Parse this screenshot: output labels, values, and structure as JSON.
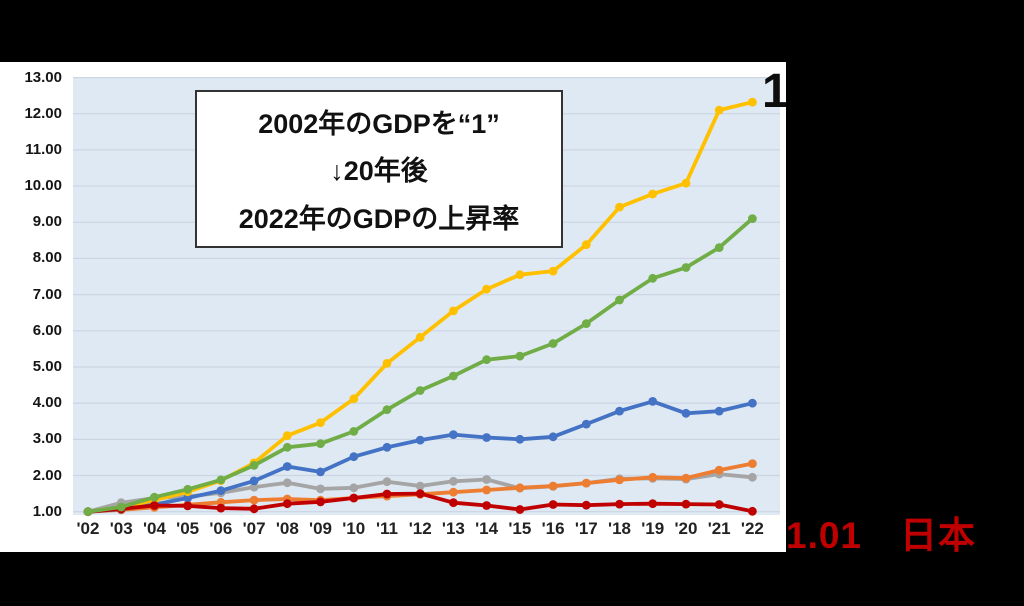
{
  "page": {
    "background_color": "#000000",
    "canvas_color": "#ffffff"
  },
  "annotation_box": {
    "line1": "2002年のGDPを“1”",
    "line2": "↓20年後",
    "line3": "2022年のGDPの上昇率"
  },
  "top_right_clipped_label": "1",
  "japan_endpoint_label": "1.01　日本",
  "japan_endpoint_color": "#C00000",
  "chart_data": {
    "type": "line",
    "title": "",
    "xlabel": "",
    "ylabel": "",
    "ylim": [
      1.0,
      13.0
    ],
    "grid": true,
    "legend_position": "none",
    "plot_background": "#dfe9f3",
    "gridline_color": "#ccd5e3",
    "x_tick_labels": [
      "'02",
      "'03",
      "'04",
      "'05",
      "'06",
      "'07",
      "'08",
      "'09",
      "'10",
      "'11",
      "'12",
      "'13",
      "'14",
      "'15",
      "'16",
      "'17",
      "'18",
      "'19",
      "'20",
      "'21",
      "'22"
    ],
    "y_tick_labels": [
      "13.00",
      "12.00",
      "11.00",
      "10.00",
      "9.00",
      "8.00",
      "7.00",
      "6.00",
      "5.00",
      "4.00",
      "3.00",
      "2.00",
      "1.00"
    ],
    "categories": [
      2002,
      2003,
      2004,
      2005,
      2006,
      2007,
      2008,
      2009,
      2010,
      2011,
      2012,
      2013,
      2014,
      2015,
      2016,
      2017,
      2018,
      2019,
      2020,
      2021,
      2022
    ],
    "series": [
      {
        "name": "series-gray",
        "color": "#A5A5A5",
        "values": [
          1.0,
          1.25,
          1.38,
          1.42,
          1.52,
          1.68,
          1.8,
          1.63,
          1.66,
          1.83,
          1.71,
          1.84,
          1.89,
          1.65,
          1.7,
          1.79,
          1.91,
          1.92,
          1.9,
          2.04,
          1.95
        ]
      },
      {
        "name": "series-orange",
        "color": "#ED7D31",
        "values": [
          1.0,
          1.05,
          1.12,
          1.19,
          1.26,
          1.32,
          1.35,
          1.32,
          1.38,
          1.43,
          1.48,
          1.54,
          1.6,
          1.66,
          1.71,
          1.79,
          1.88,
          1.95,
          1.93,
          2.15,
          2.33
        ]
      },
      {
        "name": "series-blue",
        "color": "#4472C4",
        "values": [
          1.0,
          1.07,
          1.2,
          1.38,
          1.58,
          1.85,
          2.25,
          2.1,
          2.52,
          2.78,
          2.98,
          3.13,
          3.05,
          3.0,
          3.07,
          3.42,
          3.78,
          4.05,
          3.72,
          3.78,
          4.0
        ]
      },
      {
        "name": "series-yellow",
        "color": "#FFC000",
        "values": [
          1.0,
          1.12,
          1.32,
          1.55,
          1.86,
          2.35,
          3.1,
          3.46,
          4.12,
          5.1,
          5.82,
          6.55,
          7.15,
          7.55,
          7.65,
          8.38,
          9.42,
          9.78,
          10.08,
          12.1,
          12.32
        ]
      },
      {
        "name": "series-japan",
        "color": "#C00000",
        "values": [
          1.0,
          1.08,
          1.17,
          1.16,
          1.1,
          1.08,
          1.22,
          1.27,
          1.38,
          1.49,
          1.5,
          1.25,
          1.17,
          1.06,
          1.2,
          1.18,
          1.21,
          1.22,
          1.21,
          1.2,
          1.01
        ]
      },
      {
        "name": "series-green",
        "color": "#70AD47",
        "values": [
          1.0,
          1.13,
          1.4,
          1.62,
          1.88,
          2.28,
          2.78,
          2.88,
          3.22,
          3.82,
          4.35,
          4.75,
          5.2,
          5.3,
          5.65,
          6.2,
          6.85,
          7.45,
          7.75,
          8.3,
          9.1
        ]
      }
    ]
  }
}
